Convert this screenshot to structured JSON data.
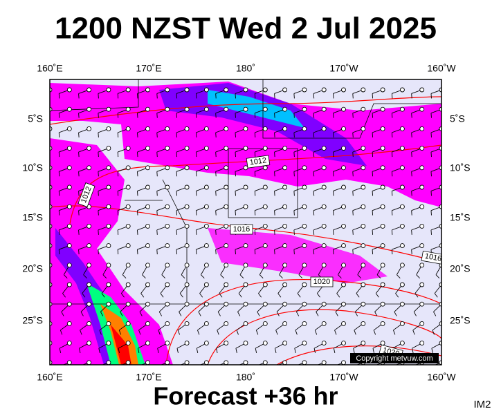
{
  "title": "1200 NZST Wed 2 Jul 2025",
  "map": {
    "top_labels": [
      "160˚E",
      "170˚E",
      "180˚",
      "170˚W",
      "160˚W"
    ],
    "bottom_labels": [
      "160˚E",
      "170˚E",
      "180˚",
      "170˚W",
      "160˚W"
    ],
    "left_labels": [
      "5˚S",
      "10˚S",
      "15˚S",
      "20˚S",
      "25˚S"
    ],
    "right_labels": [
      "5˚S",
      "10˚S",
      "15˚S",
      "20˚S",
      "25˚S"
    ],
    "isobar_labels": [
      "1012",
      "1012",
      "1016",
      "1016",
      "1020",
      "1020"
    ],
    "copyright": "Copyright metvuw.com"
  },
  "footer": "Forecast +36 hr",
  "code": "IM2"
}
